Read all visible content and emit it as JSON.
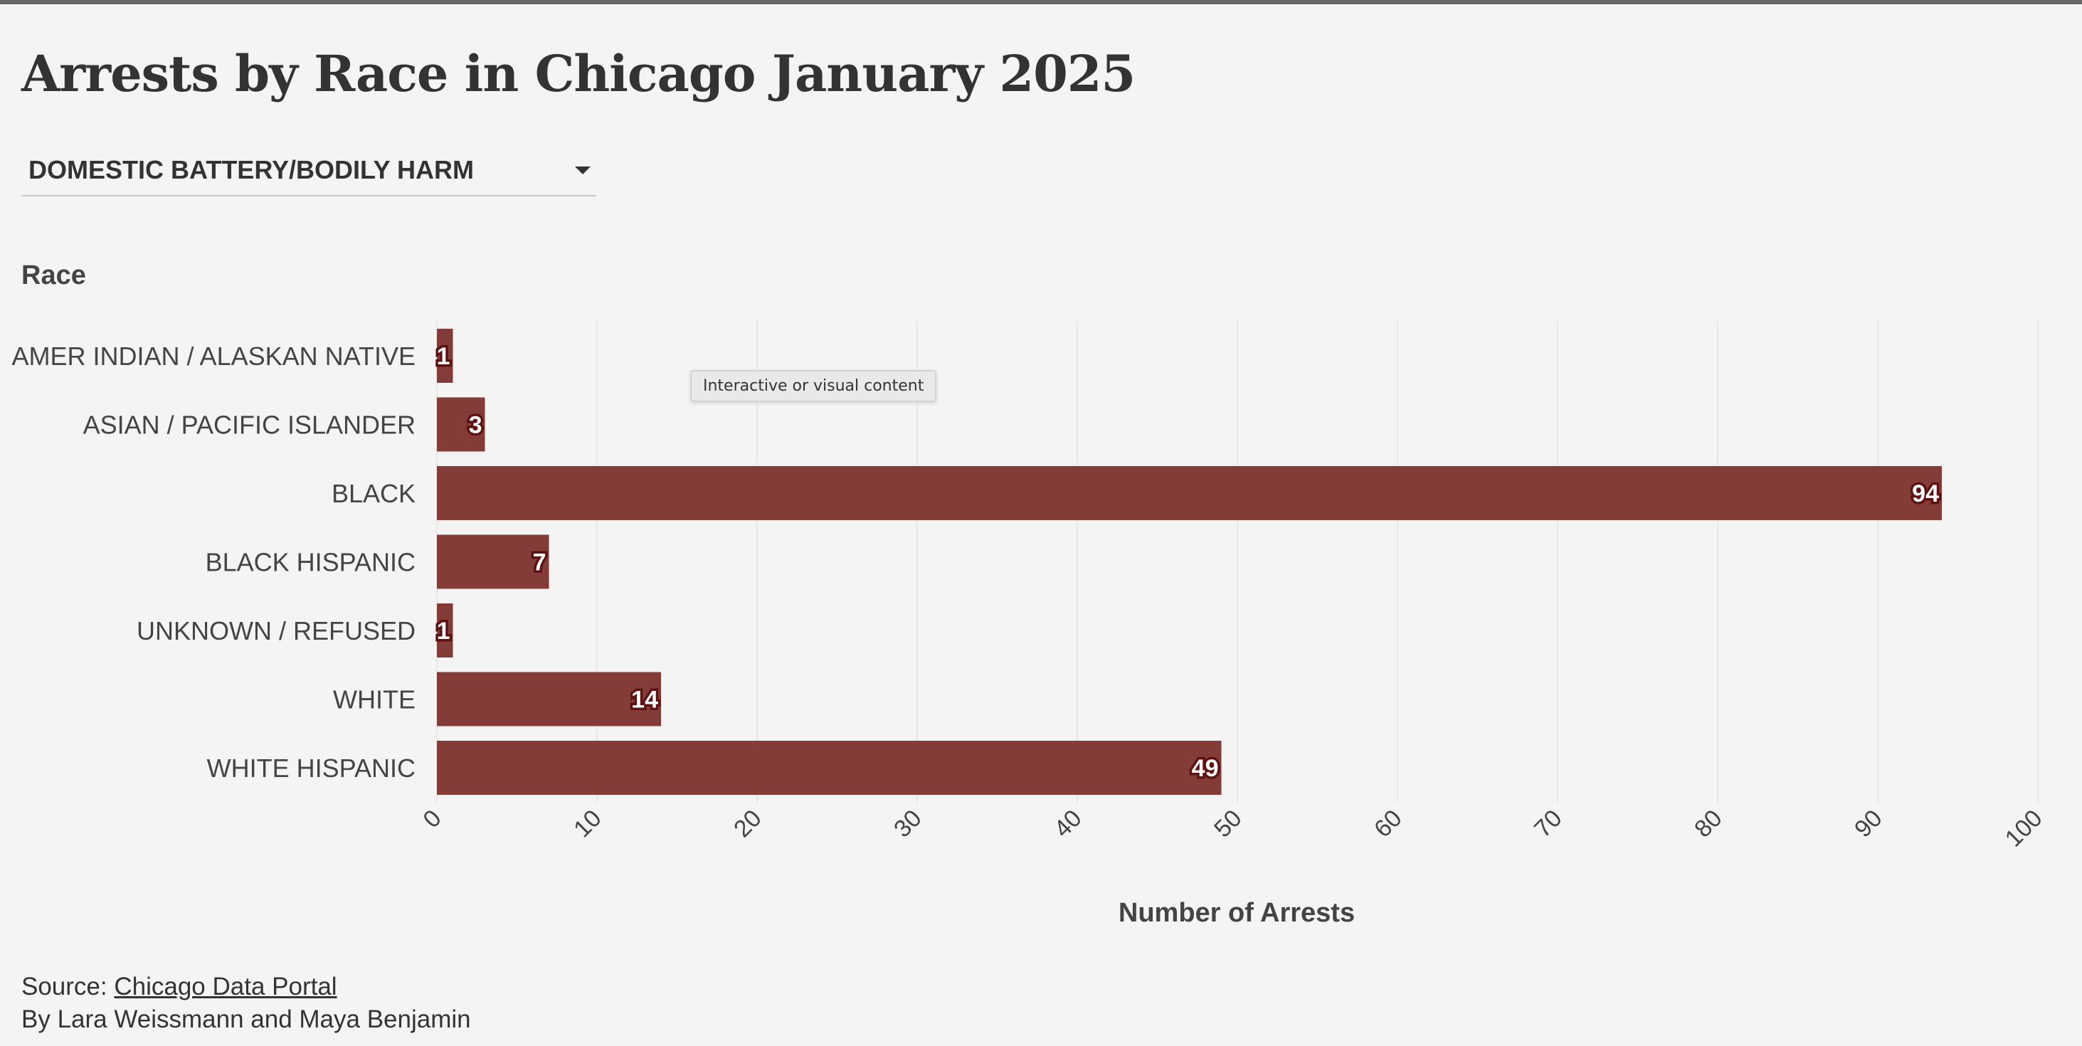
{
  "title": "Arrests by Race in Chicago January 2025",
  "filter": {
    "selected": "DOMESTIC BATTERY/BODILY HARM"
  },
  "tooltip": "Interactive or visual content",
  "footer": {
    "source_prefix": "Source: ",
    "source_link": "Chicago Data Portal",
    "byline": "By Lara Weissmann and Maya Benjamin"
  },
  "colors": {
    "bar": "#843c38",
    "grid": "#e6e6e6",
    "background": "#f4f4f4"
  },
  "chart_data": {
    "type": "bar",
    "orientation": "horizontal",
    "categories": [
      "AMER INDIAN / ALASKAN NATIVE",
      "ASIAN / PACIFIC ISLANDER",
      "BLACK",
      "BLACK HISPANIC",
      "UNKNOWN / REFUSED",
      "WHITE",
      "WHITE HISPANIC"
    ],
    "values": [
      1,
      3,
      94,
      7,
      1,
      14,
      49
    ],
    "ylabel": "Race",
    "xlabel": "Number of Arrests",
    "xlim": [
      0,
      100
    ],
    "xticks": [
      0,
      10,
      20,
      30,
      40,
      50,
      60,
      70,
      80,
      90,
      100
    ],
    "grid": true,
    "data_labels": true
  }
}
